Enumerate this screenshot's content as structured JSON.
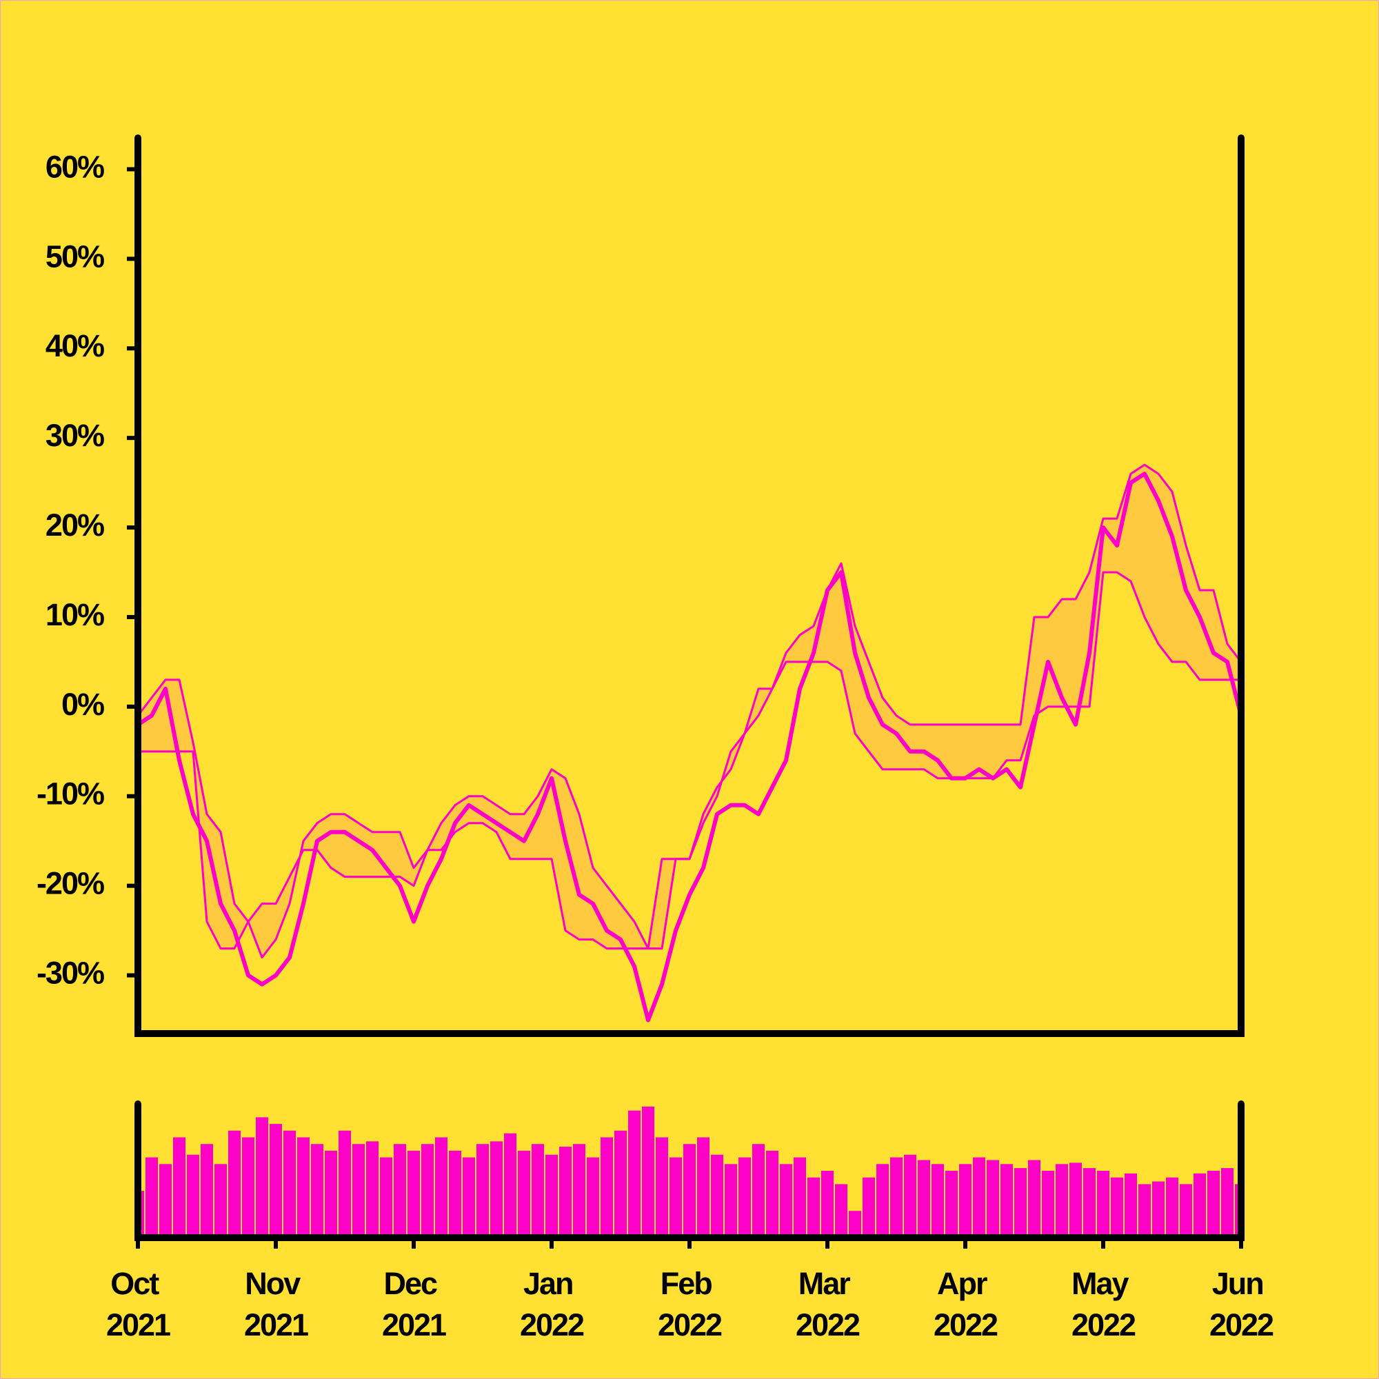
{
  "chart_data": [
    {
      "type": "line",
      "ylim": [
        -36.5,
        63.5
      ],
      "yticks": [
        {
          "value": -30,
          "label": "-30%"
        },
        {
          "value": -20,
          "label": "-20%"
        },
        {
          "value": -10,
          "label": "-10%"
        },
        {
          "value": 0,
          "label": "0%"
        },
        {
          "value": 10,
          "label": "10%"
        },
        {
          "value": 20,
          "label": "20%"
        },
        {
          "value": 30,
          "label": "30%"
        },
        {
          "value": 40,
          "label": "40%"
        },
        {
          "value": 50,
          "label": "50%"
        },
        {
          "value": 60,
          "label": "60%"
        }
      ],
      "band_color": "#ffc940",
      "series": [
        {
          "color": "#ff00c8",
          "values": [
            -2,
            -1,
            2,
            -6,
            -12,
            -15,
            -22,
            -25,
            -30,
            -31,
            -30,
            -28,
            -22,
            -15,
            -14,
            -14,
            -15,
            -16,
            -18,
            -20,
            -24,
            -20,
            -17,
            -13,
            -11,
            -12,
            -13,
            -14,
            -15,
            -12,
            -8,
            -15,
            -21,
            -22,
            -25,
            -26,
            -29,
            -35,
            -31,
            -25,
            -21,
            -18,
            -12,
            -11,
            -11,
            -12,
            -9,
            -6,
            2,
            6,
            13,
            15,
            6,
            1,
            -2,
            -3,
            -5,
            -5,
            -6,
            -8,
            -8,
            -7,
            -8,
            -7,
            -9,
            -2,
            5,
            1,
            -2,
            6,
            20,
            18,
            25,
            26,
            23,
            19,
            13,
            10,
            6,
            5,
            -1
          ]
        },
        {
          "color": "#ff00c8",
          "values": [
            -1,
            1,
            3,
            3,
            -4,
            -12,
            -14,
            -22,
            -24,
            -28,
            -26,
            -22,
            -15,
            -13,
            -12,
            -12,
            -13,
            -14,
            -14,
            -14,
            -18,
            -16,
            -13,
            -11,
            -10,
            -10,
            -11,
            -12,
            -12,
            -10,
            -7,
            -8,
            -12,
            -18,
            -20,
            -22,
            -24,
            -27,
            -27,
            -17,
            -17,
            -12,
            -9,
            -7,
            -3,
            2,
            2,
            6,
            8,
            9,
            13,
            16,
            9,
            5,
            1,
            -1,
            -2,
            -2,
            -2,
            -2,
            -2,
            -2,
            -2,
            -2,
            -2,
            10,
            10,
            12,
            12,
            15,
            21,
            21,
            26,
            27,
            26,
            24,
            18,
            13,
            13,
            7,
            5
          ]
        },
        {
          "color": "#ff00c8",
          "values": [
            -5,
            -5,
            -5,
            -5,
            -5,
            -24,
            -27,
            -27,
            -24,
            -22,
            -22,
            -19,
            -16,
            -16,
            -18,
            -19,
            -19,
            -19,
            -19,
            -19,
            -20,
            -16,
            -16,
            -14,
            -13,
            -13,
            -14,
            -17,
            -17,
            -17,
            -17,
            -25,
            -26,
            -26,
            -27,
            -27,
            -27,
            -27,
            -17,
            -17,
            -17,
            -13,
            -10,
            -5,
            -3,
            -1,
            2,
            5,
            5,
            5,
            5,
            4,
            -3,
            -5,
            -7,
            -7,
            -7,
            -7,
            -8,
            -8,
            -8,
            -8,
            -8,
            -6,
            -6,
            -1,
            0,
            0,
            0,
            0,
            15,
            15,
            14,
            10,
            7,
            5,
            5,
            3,
            3,
            3,
            3
          ]
        }
      ]
    },
    {
      "type": "bar",
      "color": "#ff00c8",
      "ylim": [
        0,
        100
      ],
      "categories": [
        "Oct 2021",
        null,
        null,
        null,
        null,
        null,
        null,
        null,
        null,
        null,
        "Nov 2021",
        null,
        null,
        null,
        null,
        null,
        null,
        null,
        null,
        null,
        "Dec 2021",
        null,
        null,
        null,
        null,
        null,
        null,
        null,
        null,
        null,
        "Jan 2022",
        null,
        null,
        null,
        null,
        null,
        null,
        null,
        null,
        null,
        "Feb 2022",
        null,
        null,
        null,
        null,
        null,
        null,
        null,
        null,
        null,
        "Mar 2022",
        null,
        null,
        null,
        null,
        null,
        null,
        null,
        null,
        null,
        "Apr 2022",
        null,
        null,
        null,
        null,
        null,
        null,
        null,
        null,
        null,
        "May 2022",
        null,
        null,
        null,
        null,
        null,
        null,
        null,
        null,
        null,
        "Jun 2022"
      ],
      "values": [
        35,
        60,
        55,
        75,
        62,
        70,
        55,
        80,
        75,
        90,
        85,
        80,
        75,
        70,
        65,
        80,
        70,
        72,
        60,
        70,
        65,
        70,
        75,
        65,
        60,
        70,
        72,
        78,
        65,
        70,
        62,
        68,
        70,
        60,
        75,
        80,
        95,
        98,
        75,
        60,
        70,
        75,
        62,
        55,
        60,
        70,
        65,
        55,
        60,
        45,
        50,
        40,
        20,
        45,
        55,
        60,
        62,
        58,
        55,
        50,
        55,
        60,
        58,
        55,
        52,
        58,
        50,
        55,
        56,
        52,
        50,
        45,
        48,
        40,
        42,
        45,
        40,
        48,
        50,
        52,
        40
      ]
    }
  ]
}
